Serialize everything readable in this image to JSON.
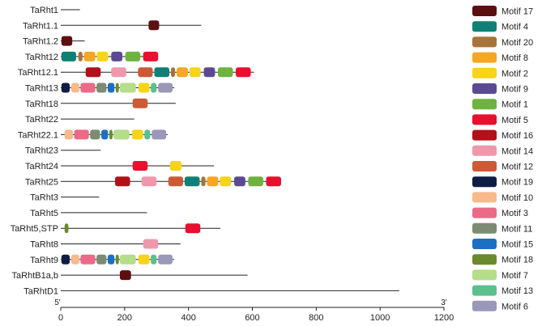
{
  "chart_data": {
    "type": "motif-map",
    "axis": {
      "min": 0,
      "max": 1200,
      "ticks": [
        0,
        200,
        400,
        600,
        800,
        1000,
        1200
      ],
      "start_label": "5'",
      "end_label": "3'"
    },
    "colors": {
      "Motif 17": "#5c0f0f",
      "Motif 4": "#0e8076",
      "Motif 20": "#a8733a",
      "Motif 8": "#f5a623",
      "Motif 2": "#f7d417",
      "Motif 9": "#5b4a93",
      "Motif 1": "#6db33f",
      "Motif 5": "#e8102e",
      "Motif 16": "#b3101a",
      "Motif 14": "#ef98ad",
      "Motif 12": "#cc5a35",
      "Motif 19": "#0f1d45",
      "Motif 10": "#f9b98a",
      "Motif 3": "#ec6a87",
      "Motif 11": "#7c8b72",
      "Motif 15": "#1d6fc4",
      "Motif 18": "#6b8a2e",
      "Motif 7": "#b5dd8a",
      "Motif 13": "#5bbf8e",
      "Motif 6": "#9a97b8"
    },
    "legend": [
      "Motif 17",
      "Motif 4",
      "Motif 20",
      "Motif 8",
      "Motif 2",
      "Motif 9",
      "Motif 1",
      "Motif 5",
      "Motif 16",
      "Motif 14",
      "Motif 12",
      "Motif 19",
      "Motif 10",
      "Motif 3",
      "Motif 11",
      "Motif 15",
      "Motif 18",
      "Motif 7",
      "Motif 13",
      "Motif 6"
    ],
    "genes": [
      {
        "name": "TaRht1",
        "length": 60,
        "motifs": []
      },
      {
        "name": "TaRht1.1",
        "length": 440,
        "motifs": [
          {
            "motif": "Motif 17",
            "start": 275,
            "end": 308
          }
        ]
      },
      {
        "name": "TaRht1.2",
        "length": 75,
        "motifs": [
          {
            "motif": "Motif 17",
            "start": 2,
            "end": 36
          }
        ]
      },
      {
        "name": "TaRht12",
        "length": 305,
        "motifs": [
          {
            "motif": "Motif 4",
            "start": 2,
            "end": 48
          },
          {
            "motif": "Motif 20",
            "start": 55,
            "end": 68
          },
          {
            "motif": "Motif 8",
            "start": 73,
            "end": 108
          },
          {
            "motif": "Motif 2",
            "start": 113,
            "end": 148
          },
          {
            "motif": "Motif 9",
            "start": 158,
            "end": 193
          },
          {
            "motif": "Motif 1",
            "start": 202,
            "end": 249
          },
          {
            "motif": "Motif 5",
            "start": 258,
            "end": 305
          }
        ]
      },
      {
        "name": "TaRht12.1",
        "length": 605,
        "motifs": [
          {
            "motif": "Motif 16",
            "start": 78,
            "end": 125
          },
          {
            "motif": "Motif 14",
            "start": 158,
            "end": 205
          },
          {
            "motif": "Motif 12",
            "start": 242,
            "end": 288
          },
          {
            "motif": "Motif 4",
            "start": 293,
            "end": 340
          },
          {
            "motif": "Motif 20",
            "start": 345,
            "end": 358
          },
          {
            "motif": "Motif 8",
            "start": 363,
            "end": 398
          },
          {
            "motif": "Motif 2",
            "start": 403,
            "end": 438
          },
          {
            "motif": "Motif 9",
            "start": 448,
            "end": 483
          },
          {
            "motif": "Motif 1",
            "start": 492,
            "end": 539
          },
          {
            "motif": "Motif 5",
            "start": 548,
            "end": 595
          }
        ]
      },
      {
        "name": "TaRht13",
        "length": 355,
        "motifs": [
          {
            "motif": "Motif 19",
            "start": 2,
            "end": 28
          },
          {
            "motif": "Motif 10",
            "start": 33,
            "end": 58
          },
          {
            "motif": "Motif 3",
            "start": 62,
            "end": 108
          },
          {
            "motif": "Motif 11",
            "start": 112,
            "end": 143
          },
          {
            "motif": "Motif 15",
            "start": 147,
            "end": 168
          },
          {
            "motif": "Motif 18",
            "start": 172,
            "end": 182
          },
          {
            "motif": "Motif 7",
            "start": 185,
            "end": 235
          },
          {
            "motif": "Motif 2",
            "start": 243,
            "end": 278
          },
          {
            "motif": "Motif 13",
            "start": 282,
            "end": 300
          },
          {
            "motif": "Motif 6",
            "start": 305,
            "end": 350
          }
        ]
      },
      {
        "name": "TaRht18",
        "length": 360,
        "motifs": [
          {
            "motif": "Motif 12",
            "start": 225,
            "end": 272
          }
        ]
      },
      {
        "name": "TaRht22",
        "length": 230,
        "motifs": []
      },
      {
        "name": "TaRht22.1",
        "length": 335,
        "motifs": [
          {
            "motif": "Motif 10",
            "start": 12,
            "end": 38
          },
          {
            "motif": "Motif 3",
            "start": 42,
            "end": 88
          },
          {
            "motif": "Motif 11",
            "start": 92,
            "end": 123
          },
          {
            "motif": "Motif 15",
            "start": 127,
            "end": 148
          },
          {
            "motif": "Motif 18",
            "start": 152,
            "end": 162
          },
          {
            "motif": "Motif 7",
            "start": 165,
            "end": 215
          },
          {
            "motif": "Motif 2",
            "start": 223,
            "end": 258
          },
          {
            "motif": "Motif 13",
            "start": 262,
            "end": 280
          },
          {
            "motif": "Motif 6",
            "start": 285,
            "end": 330
          }
        ]
      },
      {
        "name": "TaRht23",
        "length": 125,
        "motifs": []
      },
      {
        "name": "TaRht24",
        "length": 480,
        "motifs": [
          {
            "motif": "Motif 5",
            "start": 225,
            "end": 272
          },
          {
            "motif": "Motif 2",
            "start": 342,
            "end": 378
          }
        ]
      },
      {
        "name": "TaRht25",
        "length": 690,
        "motifs": [
          {
            "motif": "Motif 16",
            "start": 170,
            "end": 217
          },
          {
            "motif": "Motif 14",
            "start": 253,
            "end": 300
          },
          {
            "motif": "Motif 12",
            "start": 337,
            "end": 383
          },
          {
            "motif": "Motif 4",
            "start": 388,
            "end": 435
          },
          {
            "motif": "Motif 20",
            "start": 440,
            "end": 453
          },
          {
            "motif": "Motif 8",
            "start": 458,
            "end": 493
          },
          {
            "motif": "Motif 2",
            "start": 498,
            "end": 533
          },
          {
            "motif": "Motif 9",
            "start": 543,
            "end": 578
          },
          {
            "motif": "Motif 1",
            "start": 587,
            "end": 634
          },
          {
            "motif": "Motif 5",
            "start": 643,
            "end": 690
          }
        ]
      },
      {
        "name": "TaRht3",
        "length": 120,
        "motifs": []
      },
      {
        "name": "TaRht5",
        "length": 270,
        "motifs": []
      },
      {
        "name": "TaRht5,STP",
        "length": 500,
        "motifs": [
          {
            "motif": "Motif 18",
            "start": 12,
            "end": 24
          },
          {
            "motif": "Motif 5",
            "start": 390,
            "end": 437
          }
        ]
      },
      {
        "name": "TaRht8",
        "length": 375,
        "motifs": [
          {
            "motif": "Motif 14",
            "start": 258,
            "end": 305
          }
        ]
      },
      {
        "name": "TaRht9",
        "length": 355,
        "motifs": [
          {
            "motif": "Motif 19",
            "start": 2,
            "end": 28
          },
          {
            "motif": "Motif 10",
            "start": 33,
            "end": 58
          },
          {
            "motif": "Motif 3",
            "start": 62,
            "end": 108
          },
          {
            "motif": "Motif 11",
            "start": 112,
            "end": 143
          },
          {
            "motif": "Motif 15",
            "start": 147,
            "end": 168
          },
          {
            "motif": "Motif 18",
            "start": 172,
            "end": 182
          },
          {
            "motif": "Motif 7",
            "start": 185,
            "end": 235
          },
          {
            "motif": "Motif 2",
            "start": 243,
            "end": 278
          },
          {
            "motif": "Motif 13",
            "start": 282,
            "end": 300
          },
          {
            "motif": "Motif 6",
            "start": 305,
            "end": 350
          }
        ]
      },
      {
        "name": "TaRhtB1a,b",
        "length": 585,
        "motifs": [
          {
            "motif": "Motif 17",
            "start": 185,
            "end": 220
          }
        ]
      },
      {
        "name": "TaRhtD1",
        "length": 1060,
        "motifs": []
      }
    ]
  }
}
